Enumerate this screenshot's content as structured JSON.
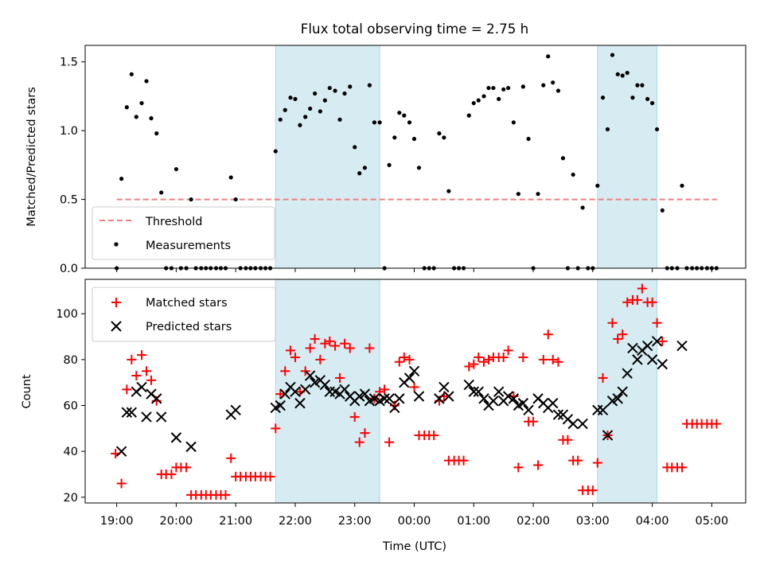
{
  "title": "Flux total observing time = 2.75 h",
  "colors": {
    "threshold": "#f08080",
    "measurement": "#000000",
    "matched": "#ff0000",
    "predicted": "#000000",
    "shade_fill": "#add8e6",
    "shade_alpha": 0.5
  },
  "shaded_ranges_hours": [
    [
      21.67,
      23.42
    ],
    [
      27.08,
      28.08
    ]
  ],
  "chart_data": [
    {
      "type": "scatter",
      "ylabel": "Matched/Predicted stars",
      "ylim": [
        0,
        1.62
      ],
      "yticks": [
        0.0,
        0.5,
        1.0,
        1.5
      ],
      "ytick_labels": [
        "0.0",
        "0.5",
        "1.0",
        "1.5"
      ],
      "xlim": [
        18.47,
        29.57
      ],
      "legend_position": "lower-left",
      "threshold": {
        "name": "Threshold",
        "value": 0.5,
        "x_start": "19:00",
        "x_end": "05:05"
      },
      "measurements": {
        "name": "Measurements",
        "x": [
          19.0,
          19.08,
          19.17,
          19.25,
          19.33,
          19.42,
          19.5,
          19.58,
          19.67,
          19.75,
          19.83,
          19.92,
          20.0,
          20.08,
          20.17,
          20.25,
          20.33,
          20.42,
          20.5,
          20.58,
          20.67,
          20.75,
          20.83,
          20.92,
          21.0,
          21.08,
          21.17,
          21.25,
          21.33,
          21.42,
          21.5,
          21.58,
          21.67,
          21.75,
          21.83,
          21.92,
          22.0,
          22.08,
          22.17,
          22.25,
          22.33,
          22.42,
          22.5,
          22.58,
          22.67,
          22.75,
          22.83,
          22.92,
          23.0,
          23.08,
          23.17,
          23.25,
          23.33,
          23.42,
          23.5,
          23.58,
          23.67,
          23.75,
          23.83,
          23.92,
          24.0,
          24.08,
          24.17,
          24.25,
          24.33,
          24.42,
          24.5,
          24.58,
          24.67,
          24.75,
          24.83,
          24.92,
          25.0,
          25.08,
          25.17,
          25.25,
          25.33,
          25.42,
          25.5,
          25.58,
          25.67,
          25.75,
          25.83,
          25.92,
          26.0,
          26.08,
          26.17,
          26.25,
          26.33,
          26.42,
          26.5,
          26.58,
          26.67,
          26.75,
          26.83,
          26.92,
          27.0,
          27.08,
          27.17,
          27.25,
          27.33,
          27.42,
          27.5,
          27.58,
          27.67,
          27.75,
          27.83,
          27.92,
          28.0,
          28.08,
          28.17,
          28.25,
          28.33,
          28.42,
          28.5,
          28.58,
          28.67,
          28.75,
          28.83,
          28.92,
          29.0,
          29.08
        ],
        "y": [
          0.0,
          0.65,
          1.17,
          1.41,
          1.1,
          1.2,
          1.36,
          1.09,
          0.98,
          0.55,
          0.0,
          0.0,
          0.72,
          0.0,
          0.0,
          0.5,
          0.0,
          0.0,
          0.0,
          0.0,
          0.0,
          0.0,
          0.0,
          0.66,
          0.5,
          0.0,
          0.0,
          0.0,
          0.0,
          0.0,
          0.0,
          0.0,
          0.85,
          1.08,
          1.15,
          1.24,
          1.23,
          1.04,
          1.1,
          1.16,
          1.27,
          1.14,
          1.22,
          1.31,
          1.29,
          1.08,
          1.27,
          1.32,
          0.88,
          0.69,
          0.73,
          1.33,
          1.06,
          1.06,
          0.0,
          0.75,
          0.95,
          1.13,
          1.11,
          1.06,
          0.94,
          0.73,
          0.0,
          0.0,
          0.0,
          0.98,
          0.95,
          0.56,
          0.0,
          0.0,
          0.0,
          1.11,
          1.2,
          1.22,
          1.25,
          1.31,
          1.31,
          1.23,
          1.3,
          1.31,
          1.06,
          0.54,
          1.32,
          0.94,
          0.0,
          0.54,
          1.33,
          1.54,
          1.35,
          1.29,
          0.8,
          0.0,
          0.68,
          0.0,
          0.44,
          0.0,
          0.0,
          0.6,
          1.24,
          1.01,
          1.55,
          1.41,
          1.4,
          1.42,
          1.24,
          1.33,
          1.33,
          1.23,
          1.2,
          1.01,
          0.42,
          0.0,
          0.0,
          0.0,
          0.6,
          0.0,
          0.0,
          0.0,
          0.0,
          0.0,
          0.0,
          0.0
        ]
      }
    },
    {
      "type": "scatter",
      "ylabel": "Count",
      "xlabel": "Time (UTC)",
      "ylim": [
        17.5,
        115
      ],
      "yticks": [
        20,
        40,
        60,
        80,
        100
      ],
      "ytick_labels": [
        "20",
        "40",
        "60",
        "80",
        "100"
      ],
      "xlim": [
        18.47,
        29.57
      ],
      "xticks": [
        19,
        20,
        21,
        22,
        23,
        24,
        25,
        26,
        27,
        28,
        29
      ],
      "xtick_labels": [
        "19:00",
        "20:00",
        "21:00",
        "22:00",
        "23:00",
        "00:00",
        "01:00",
        "02:00",
        "03:00",
        "04:00",
        "05:00"
      ],
      "legend_position": "upper-left",
      "series": [
        {
          "name": "Matched stars",
          "marker": "plus",
          "x": [
            18.98,
            19.08,
            19.17,
            19.25,
            19.33,
            19.42,
            19.5,
            19.58,
            19.67,
            19.75,
            19.83,
            19.92,
            20.0,
            20.08,
            20.17,
            20.25,
            20.33,
            20.42,
            20.5,
            20.58,
            20.67,
            20.75,
            20.83,
            20.92,
            21.0,
            21.08,
            21.17,
            21.25,
            21.33,
            21.42,
            21.5,
            21.58,
            21.67,
            21.75,
            21.83,
            21.92,
            22.0,
            22.08,
            22.17,
            22.25,
            22.33,
            22.42,
            22.5,
            22.58,
            22.67,
            22.75,
            22.83,
            22.92,
            23.0,
            23.08,
            23.17,
            23.25,
            23.33,
            23.42,
            23.5,
            23.58,
            23.67,
            23.75,
            23.83,
            23.92,
            24.0,
            24.08,
            24.17,
            24.25,
            24.33,
            24.42,
            24.5,
            24.58,
            24.67,
            24.75,
            24.83,
            24.92,
            25.0,
            25.08,
            25.17,
            25.25,
            25.33,
            25.42,
            25.5,
            25.58,
            25.67,
            25.75,
            25.83,
            25.92,
            26.0,
            26.08,
            26.17,
            26.25,
            26.33,
            26.42,
            26.5,
            26.58,
            26.67,
            26.75,
            26.83,
            26.92,
            27.0,
            27.08,
            27.17,
            27.25,
            27.33,
            27.42,
            27.5,
            27.58,
            27.67,
            27.75,
            27.83,
            27.92,
            28.0,
            28.08,
            28.17,
            28.25,
            28.33,
            28.42,
            28.5,
            28.58,
            28.67,
            28.75,
            28.83,
            28.92,
            29.0,
            29.08
          ],
          "y": [
            39,
            26,
            67,
            80,
            73,
            82,
            75,
            71,
            62,
            30,
            30,
            30,
            33,
            33,
            33,
            21,
            21,
            21,
            21,
            21,
            21,
            21,
            21,
            37,
            29,
            29,
            29,
            29,
            29,
            29,
            29,
            29,
            50,
            65,
            75,
            84,
            81,
            66,
            75,
            85,
            89,
            80,
            87,
            88,
            86,
            72,
            87,
            85,
            55,
            44,
            48,
            85,
            63,
            66,
            67,
            44,
            60,
            79,
            81,
            80,
            68,
            47,
            47,
            47,
            47,
            62,
            64,
            36,
            36,
            36,
            36,
            77,
            78,
            81,
            79,
            80,
            81,
            81,
            81,
            84,
            64,
            33,
            81,
            53,
            53,
            34,
            80,
            91,
            80,
            79,
            45,
            45,
            36,
            36,
            23,
            23,
            23,
            35,
            72,
            47,
            96,
            89,
            91,
            105,
            106,
            106,
            111,
            105,
            105,
            96,
            88,
            33,
            33,
            33,
            33,
            52,
            52,
            52,
            52,
            52,
            52,
            52
          ]
        },
        {
          "name": "Predicted stars",
          "marker": "x",
          "x": [
            19.08,
            19.17,
            19.25,
            19.33,
            19.42,
            19.5,
            19.58,
            19.67,
            19.75,
            20.0,
            20.25,
            20.92,
            21.0,
            21.67,
            21.75,
            21.83,
            21.92,
            22.0,
            22.08,
            22.17,
            22.25,
            22.33,
            22.42,
            22.5,
            22.58,
            22.67,
            22.75,
            22.83,
            22.92,
            23.0,
            23.08,
            23.17,
            23.25,
            23.33,
            23.42,
            23.5,
            23.58,
            23.67,
            23.75,
            23.83,
            23.92,
            24.0,
            24.08,
            24.42,
            24.5,
            24.58,
            24.92,
            25.0,
            25.08,
            25.17,
            25.25,
            25.33,
            25.42,
            25.5,
            25.58,
            25.67,
            25.75,
            25.83,
            25.92,
            26.08,
            26.17,
            26.25,
            26.33,
            26.42,
            26.5,
            26.58,
            26.67,
            26.83,
            27.08,
            27.17,
            27.25,
            27.33,
            27.42,
            27.5,
            27.58,
            27.67,
            27.75,
            27.83,
            27.92,
            28.0,
            28.08,
            28.17,
            28.5
          ],
          "y": [
            40,
            57,
            57,
            66,
            68,
            55,
            65,
            63,
            55,
            46,
            42,
            56,
            58,
            59,
            60,
            65,
            68,
            66,
            61,
            67,
            73,
            70,
            71,
            69,
            66,
            66,
            65,
            67,
            64,
            62,
            64,
            65,
            62,
            63,
            62,
            63,
            63,
            59,
            63,
            70,
            72,
            75,
            64,
            63,
            68,
            64,
            69,
            66,
            66,
            63,
            60,
            62,
            66,
            62,
            64,
            63,
            60,
            61,
            58,
            63,
            61,
            59,
            61,
            56,
            56,
            54,
            52,
            52,
            58,
            58,
            47,
            62,
            63,
            66,
            74,
            85,
            80,
            84,
            86,
            80,
            88,
            78,
            86
          ]
        }
      ]
    }
  ]
}
